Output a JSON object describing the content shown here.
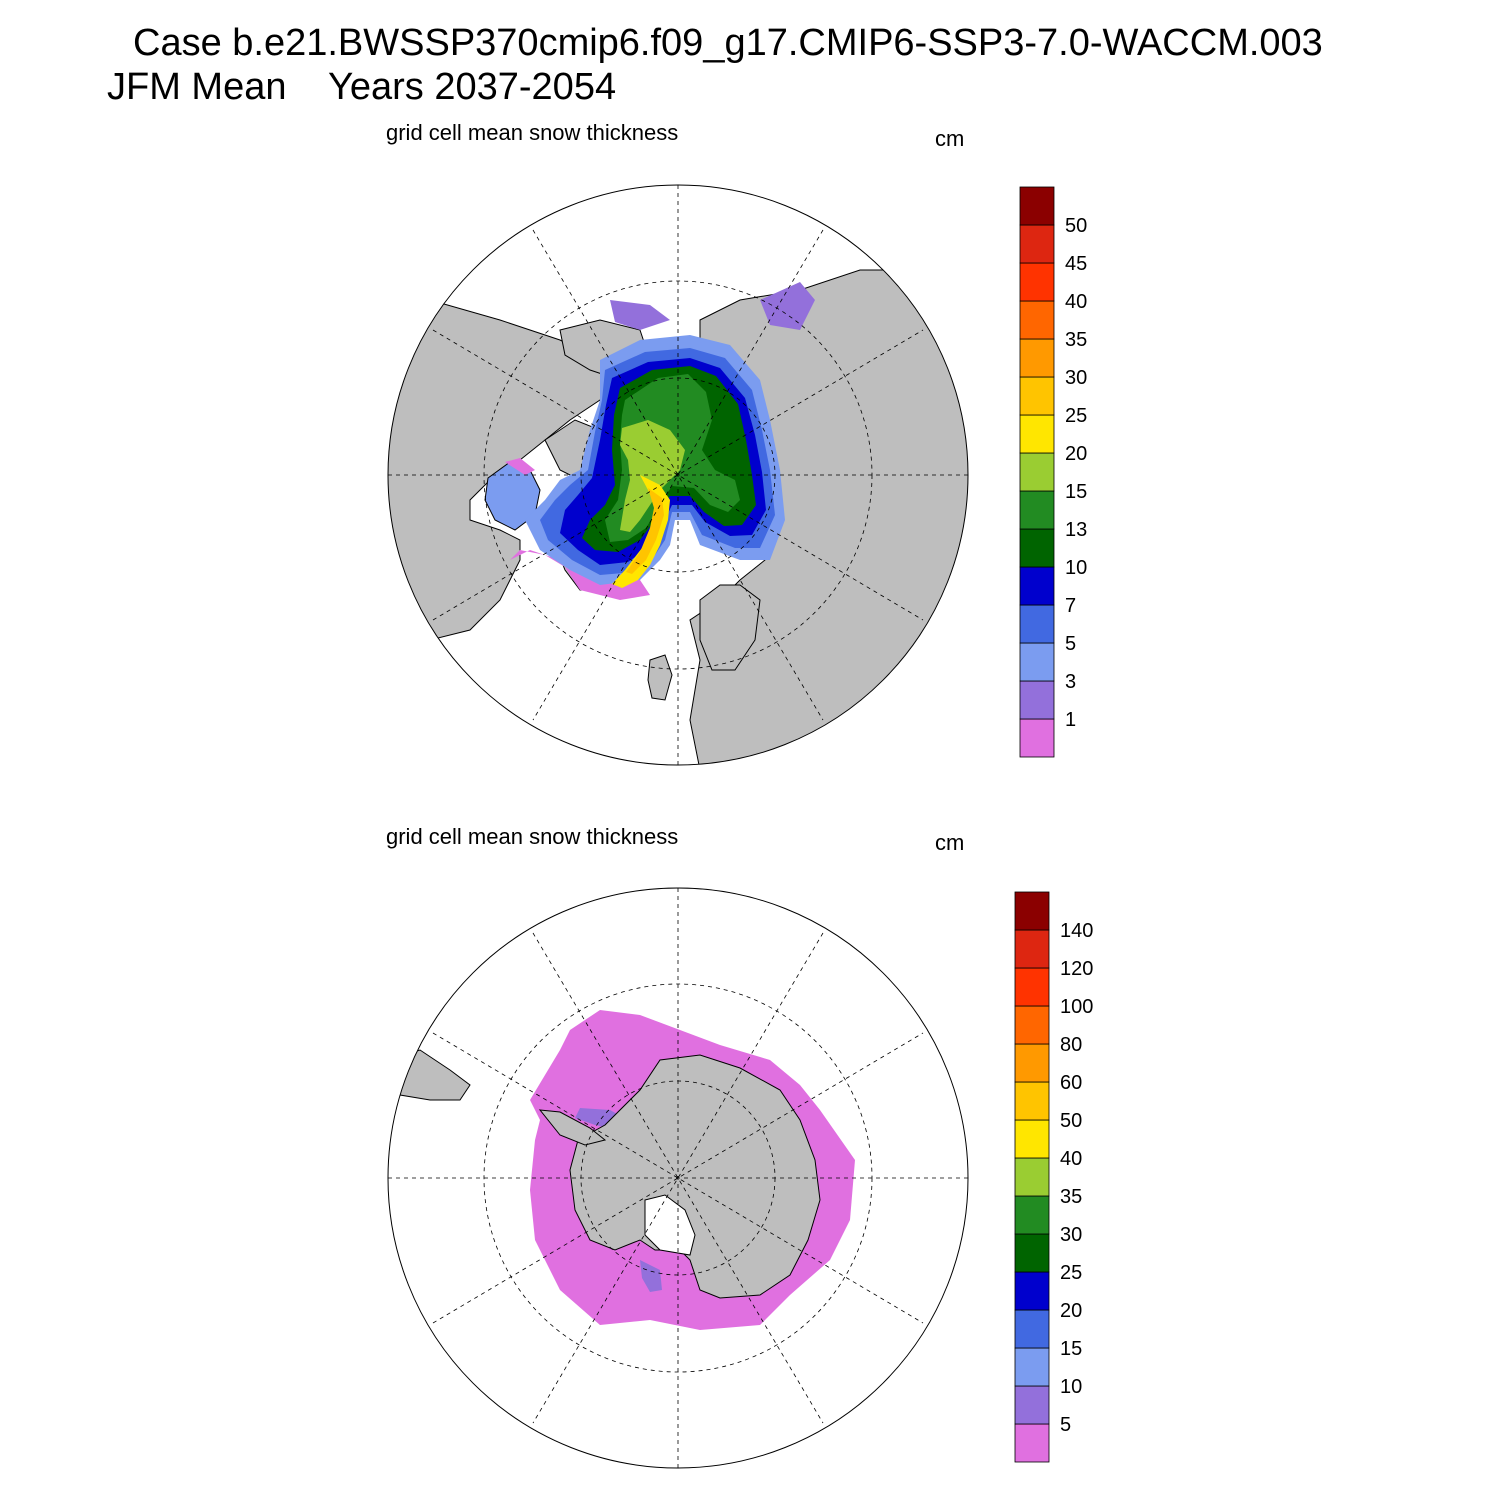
{
  "header": {
    "case_line": "Case b.e21.BWSSP370cmip6.f09_g17.CMIP6-SSP3-7.0-WACCM.003",
    "period_line": "JFM Mean    Years 2037-2054"
  },
  "panels": [
    {
      "hemisphere": "north",
      "title": "grid cell mean snow thickness",
      "units": "cm",
      "colorbar": {
        "colors": [
          "#e070e0",
          "#9370db",
          "#7b9cf0",
          "#4169e1",
          "#0000cd",
          "#006400",
          "#228b22",
          "#9acd32",
          "#ffe600",
          "#ffc400",
          "#ff9900",
          "#ff6600",
          "#ff3300",
          "#dd2611",
          "#8b0000"
        ],
        "labels": [
          "1",
          "3",
          "5",
          "7",
          "10",
          "13",
          "15",
          "20",
          "25",
          "30",
          "35",
          "40",
          "45",
          "50"
        ]
      }
    },
    {
      "hemisphere": "south",
      "title": "grid cell mean snow thickness",
      "units": "cm",
      "colorbar": {
        "colors": [
          "#e070e0",
          "#9370db",
          "#7b9cf0",
          "#4169e1",
          "#0000cd",
          "#006400",
          "#228b22",
          "#9acd32",
          "#ffe600",
          "#ffc400",
          "#ff9900",
          "#ff6600",
          "#ff3300",
          "#dd2611",
          "#8b0000"
        ],
        "labels": [
          "5",
          "10",
          "15",
          "20",
          "25",
          "30",
          "35",
          "40",
          "50",
          "60",
          "80",
          "100",
          "120",
          "140"
        ]
      }
    }
  ],
  "style": {
    "land_color": "#bebebe",
    "ocean_color": "#ffffff"
  }
}
